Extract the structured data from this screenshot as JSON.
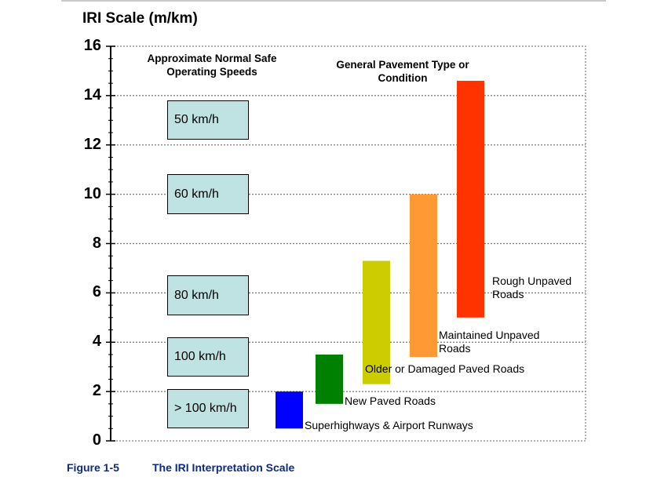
{
  "title": "IRI Scale (m/km)",
  "caption": {
    "number": "Figure 1-5",
    "text": "The IRI Interpretation Scale"
  },
  "chart_data": {
    "type": "bar",
    "ylim": [
      0,
      16
    ],
    "yticks": [
      "0",
      "2",
      "4",
      "6",
      "8",
      "10",
      "12",
      "14",
      "16"
    ],
    "grid": true,
    "speed_header": "Approximate Normal Safe Operating Speeds",
    "pavement_header": "General Pavement Type or Condition",
    "speed_boxes": [
      {
        "label": "50 km/h",
        "y_from": 12.2,
        "y_to": 13.8
      },
      {
        "label": "60 km/h",
        "y_from": 9.2,
        "y_to": 10.8
      },
      {
        "label": "80 km/h",
        "y_from": 5.1,
        "y_to": 6.7
      },
      {
        "label": "100 km/h",
        "y_from": 2.6,
        "y_to": 4.2
      },
      {
        "label": "> 100 km/h",
        "y_from": 0.5,
        "y_to": 2.1
      }
    ],
    "bars": [
      {
        "label": "Superhighways & Airport Runways",
        "low": 0.5,
        "high": 2.0,
        "color": "#0000ff"
      },
      {
        "label": "New Paved Roads",
        "low": 1.5,
        "high": 3.5,
        "color": "#008000"
      },
      {
        "label": "Older or Damaged Paved Roads",
        "low": 2.3,
        "high": 7.3,
        "color": "#cccc00"
      },
      {
        "label": "Maintained Unpaved Roads",
        "low": 3.4,
        "high": 10.0,
        "color": "#ff9933"
      },
      {
        "label": "Rough Unpaved Roads",
        "low": 5.0,
        "high": 14.6,
        "color": "#ff3300"
      }
    ]
  }
}
